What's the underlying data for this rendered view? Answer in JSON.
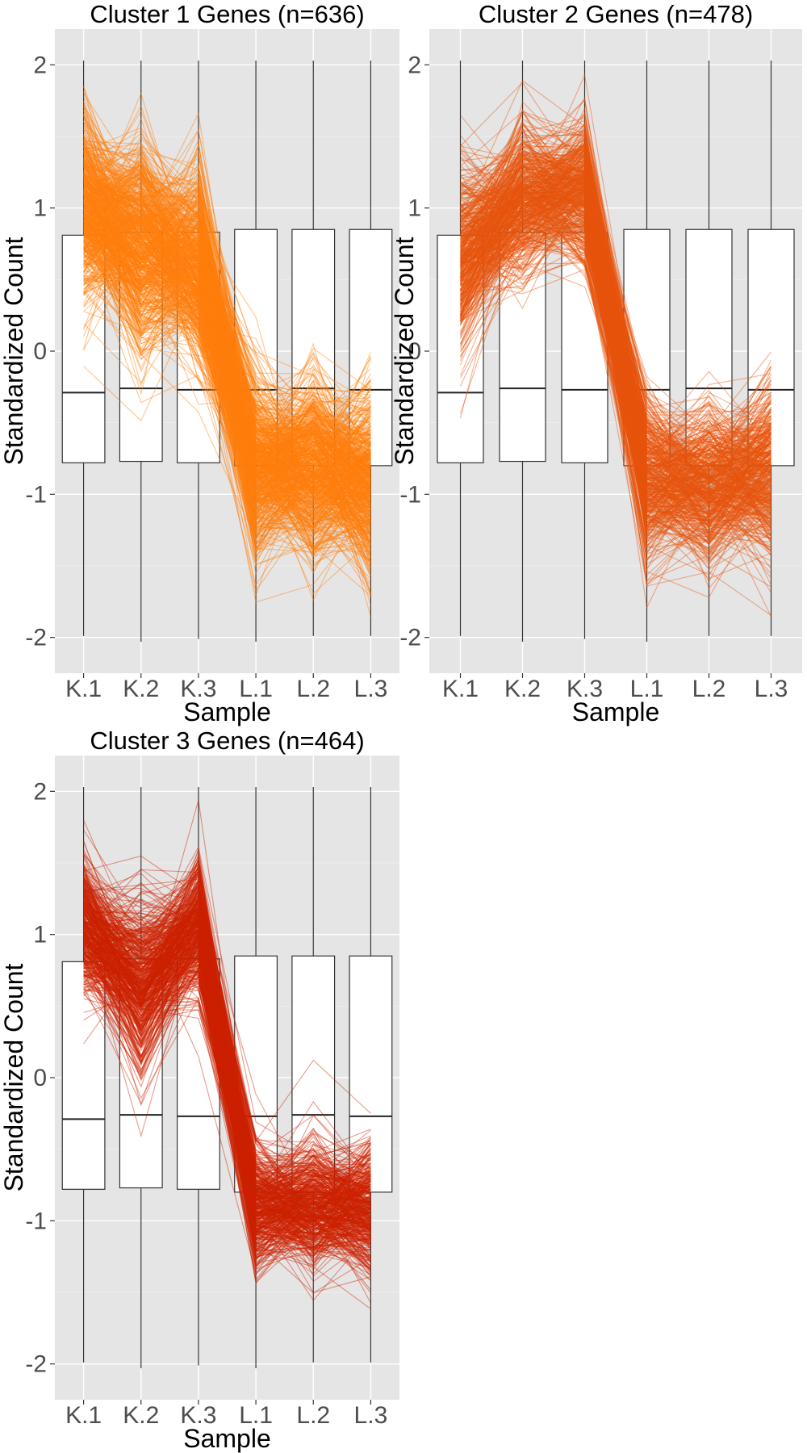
{
  "chart_data": [
    {
      "type": "line",
      "title": "Cluster 1 Genes (n=636)",
      "xlabel": "Sample",
      "ylabel": "Standardized Count",
      "categories": [
        "K.1",
        "K.2",
        "K.3",
        "L.1",
        "L.2",
        "L.3"
      ],
      "yticks": [
        "-2",
        "-1",
        "0",
        "1",
        "2"
      ],
      "ylim": [
        -2.25,
        2.25
      ],
      "grid": true,
      "line_color": "#ff7f0e",
      "gene_count": 636,
      "mean_profile": [
        1.0,
        0.75,
        0.6,
        -0.8,
        -0.8,
        -0.9
      ],
      "profile_spread": [
        0.3,
        0.35,
        0.3,
        0.28,
        0.3,
        0.28
      ],
      "boxplot": [
        {
          "category": "K.1",
          "q1": -0.78,
          "median": -0.29,
          "q3": 0.81,
          "whisker_low": -1.99,
          "whisker_high": 2.03
        },
        {
          "category": "K.2",
          "q1": -0.77,
          "median": -0.26,
          "q3": 0.83,
          "whisker_low": -2.03,
          "whisker_high": 2.03
        },
        {
          "category": "K.3",
          "q1": -0.78,
          "median": -0.27,
          "q3": 0.83,
          "whisker_low": -2.01,
          "whisker_high": 2.03
        },
        {
          "category": "L.1",
          "q1": -0.8,
          "median": -0.27,
          "q3": 0.85,
          "whisker_low": -2.03,
          "whisker_high": 2.03
        },
        {
          "category": "L.2",
          "q1": -0.8,
          "median": -0.26,
          "q3": 0.85,
          "whisker_low": -1.99,
          "whisker_high": 2.03
        },
        {
          "category": "L.3",
          "q1": -0.8,
          "median": -0.27,
          "q3": 0.85,
          "whisker_low": -1.99,
          "whisker_high": 2.03
        }
      ]
    },
    {
      "type": "line",
      "title": "Cluster 2 Genes (n=478)",
      "xlabel": "Sample",
      "ylabel": "Standardized Count",
      "categories": [
        "K.1",
        "K.2",
        "K.3",
        "L.1",
        "L.2",
        "L.3"
      ],
      "yticks": [
        "-2",
        "-1",
        "0",
        "1",
        "2"
      ],
      "ylim": [
        -2.25,
        2.25
      ],
      "grid": true,
      "line_color": "#e6550d",
      "gene_count": 478,
      "mean_profile": [
        0.65,
        1.05,
        1.1,
        -0.9,
        -0.95,
        -0.85
      ],
      "profile_spread": [
        0.3,
        0.25,
        0.25,
        0.25,
        0.25,
        0.28
      ],
      "boxplot": [
        {
          "category": "K.1",
          "q1": -0.78,
          "median": -0.29,
          "q3": 0.81,
          "whisker_low": -1.99,
          "whisker_high": 2.03
        },
        {
          "category": "K.2",
          "q1": -0.77,
          "median": -0.26,
          "q3": 0.83,
          "whisker_low": -2.03,
          "whisker_high": 2.03
        },
        {
          "category": "K.3",
          "q1": -0.78,
          "median": -0.27,
          "q3": 0.83,
          "whisker_low": -2.01,
          "whisker_high": 2.03
        },
        {
          "category": "L.1",
          "q1": -0.8,
          "median": -0.27,
          "q3": 0.85,
          "whisker_low": -2.03,
          "whisker_high": 2.03
        },
        {
          "category": "L.2",
          "q1": -0.8,
          "median": -0.26,
          "q3": 0.85,
          "whisker_low": -1.99,
          "whisker_high": 2.03
        },
        {
          "category": "L.3",
          "q1": -0.8,
          "median": -0.27,
          "q3": 0.85,
          "whisker_low": -1.99,
          "whisker_high": 2.03
        }
      ]
    },
    {
      "type": "line",
      "title": "Cluster 3 Genes (n=464)",
      "xlabel": "Sample",
      "ylabel": "Standardized Count",
      "categories": [
        "K.1",
        "K.2",
        "K.3",
        "L.1",
        "L.2",
        "L.3"
      ],
      "yticks": [
        "-2",
        "-1",
        "0",
        "1",
        "2"
      ],
      "ylim": [
        -2.25,
        2.25
      ],
      "grid": true,
      "line_color": "#cc2200",
      "gene_count": 464,
      "mean_profile": [
        1.05,
        0.65,
        1.05,
        -0.9,
        -0.9,
        -0.9
      ],
      "profile_spread": [
        0.2,
        0.3,
        0.2,
        0.2,
        0.2,
        0.2
      ],
      "boxplot": [
        {
          "category": "K.1",
          "q1": -0.78,
          "median": -0.29,
          "q3": 0.81,
          "whisker_low": -1.99,
          "whisker_high": 2.03
        },
        {
          "category": "K.2",
          "q1": -0.77,
          "median": -0.26,
          "q3": 0.83,
          "whisker_low": -2.03,
          "whisker_high": 2.03
        },
        {
          "category": "K.3",
          "q1": -0.78,
          "median": -0.27,
          "q3": 0.83,
          "whisker_low": -2.01,
          "whisker_high": 2.03
        },
        {
          "category": "L.1",
          "q1": -0.8,
          "median": -0.27,
          "q3": 0.85,
          "whisker_low": -2.03,
          "whisker_high": 2.03
        },
        {
          "category": "L.2",
          "q1": -0.8,
          "median": -0.26,
          "q3": 0.85,
          "whisker_low": -1.99,
          "whisker_high": 2.03
        },
        {
          "category": "L.3",
          "q1": -0.8,
          "median": -0.27,
          "q3": 0.85,
          "whisker_low": -1.99,
          "whisker_high": 2.03
        }
      ]
    }
  ],
  "colors": {
    "panel_background": "#e5e5e5",
    "grid_line": "#ffffff",
    "box_fill": "#ffffff"
  }
}
